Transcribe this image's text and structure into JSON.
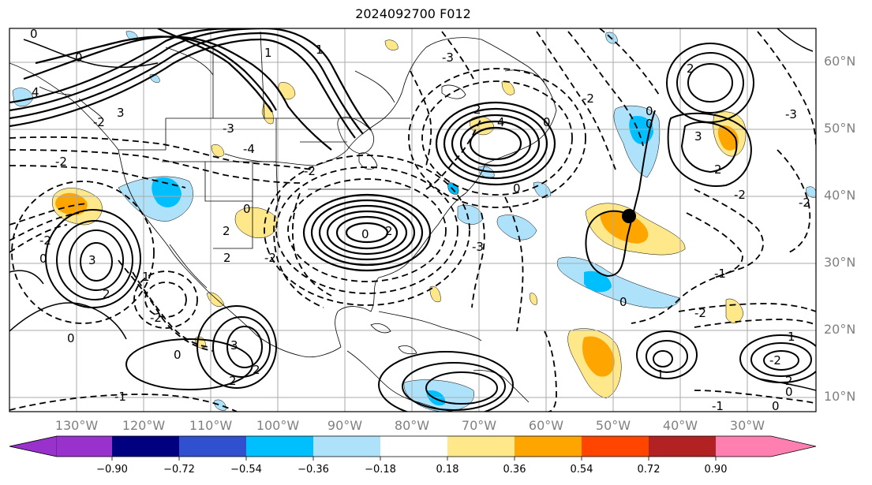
{
  "title": "2024092700 F012",
  "lat_labels": [
    "60°N",
    "50°N",
    "40°N",
    "30°N",
    "20°N",
    "10°N"
  ],
  "lon_labels": [
    "130°W",
    "120°W",
    "110°W",
    "100°W",
    "90°W",
    "80°W",
    "70°W",
    "60°W",
    "50°W",
    "40°W",
    "30°W"
  ],
  "colorbar": {
    "colors": [
      "#9932cc",
      "#000080",
      "#3050d0",
      "#00bfff",
      "#aee2fa",
      "#ffffff",
      "#ffe88a",
      "#ffa500",
      "#ff4500",
      "#b22222",
      "#ff80b0"
    ],
    "labels": [
      "−0.90",
      "−0.72",
      "−0.54",
      "−0.36",
      "−0.18",
      "0.18",
      "0.36",
      "0.54",
      "0.72",
      "0.90"
    ]
  },
  "contour_labels": {
    "positive": [
      "4",
      "3",
      "2",
      "1",
      "0"
    ],
    "negative": [
      "-1",
      "-2",
      "-3",
      "-4"
    ]
  },
  "storm_marker": {
    "lat": 37,
    "lon": -48
  }
}
